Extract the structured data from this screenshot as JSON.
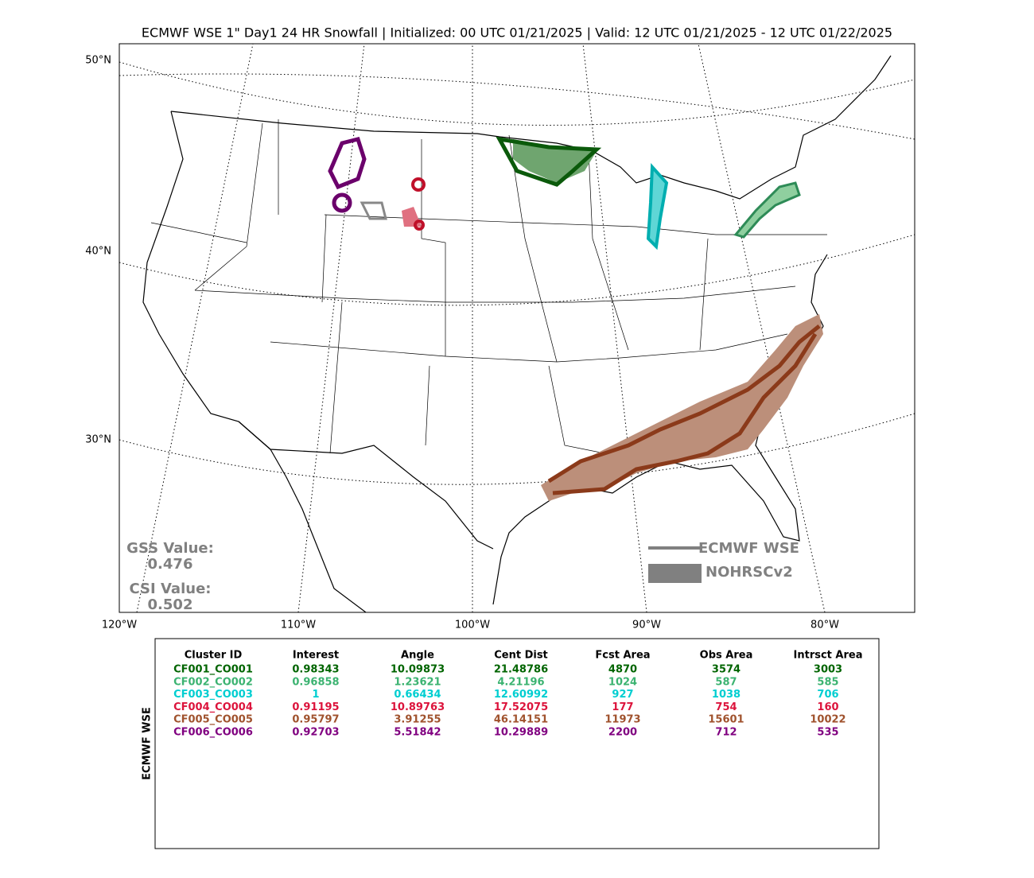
{
  "title": "ECMWF WSE 1\" Day1 24 HR Snowfall | Initialized: 00 UTC 01/21/2025 | Valid: 12 UTC 01/21/2025 - 12 UTC 01/22/2025",
  "map": {
    "lat_labels": [
      "50°N",
      "40°N",
      "30°N"
    ],
    "lon_labels": [
      "120°W",
      "110°W",
      "100°W",
      "90°W",
      "80°W"
    ]
  },
  "scores": {
    "gss_label": "GSS Value:",
    "gss_value": "0.476",
    "csi_label": "CSI Value:",
    "csi_value": "0.502"
  },
  "legend": {
    "forecast": "ECMWF WSE",
    "observed": "NOHRSCv2"
  },
  "table": {
    "side_label": "ECMWF WSE",
    "headers": [
      "Cluster ID",
      "Interest",
      "Angle",
      "Cent Dist",
      "Fcst Area",
      "Obs Area",
      "Intrsct Area"
    ],
    "rows": [
      {
        "color": "#006400",
        "cells": [
          "CF001_CO001",
          "0.98343",
          "10.09873",
          "21.48786",
          "4870",
          "3574",
          "3003"
        ]
      },
      {
        "color": "#3cb371",
        "cells": [
          "CF002_CO002",
          "0.96858",
          "1.23621",
          "4.21196",
          "1024",
          "587",
          "585"
        ]
      },
      {
        "color": "#00ced1",
        "cells": [
          "CF003_CO003",
          "1",
          "0.66434",
          "12.60992",
          "927",
          "1038",
          "706"
        ]
      },
      {
        "color": "#dc143c",
        "cells": [
          "CF004_CO004",
          "0.91195",
          "10.89763",
          "17.52075",
          "177",
          "754",
          "160"
        ]
      },
      {
        "color": "#a0522d",
        "cells": [
          "CF005_CO005",
          "0.95797",
          "3.91255",
          "46.14151",
          "11973",
          "15601",
          "10022"
        ]
      },
      {
        "color": "#800080",
        "cells": [
          "CF006_CO006",
          "0.92703",
          "5.51842",
          "10.29889",
          "2200",
          "712",
          "535"
        ]
      }
    ]
  }
}
